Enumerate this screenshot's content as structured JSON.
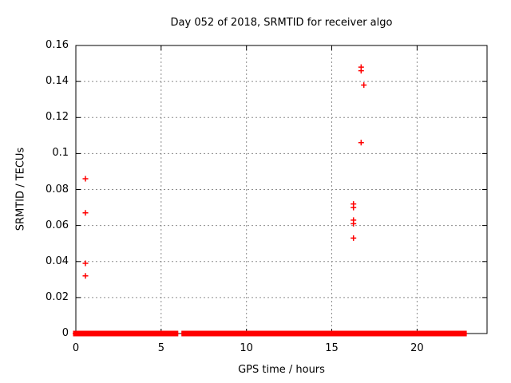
{
  "chart_data": {
    "type": "scatter",
    "title": "Day 052 of 2018, SRMTID for receiver algo",
    "xlabel": "GPS time / hours",
    "ylabel": "SRMTID / TECUs",
    "xlim": [
      0,
      24.1
    ],
    "ylim": [
      0,
      0.16
    ],
    "xticks": [
      0,
      5,
      10,
      15,
      20
    ],
    "xtick_labels": [
      "0",
      "5",
      "10",
      "15",
      "20"
    ],
    "yticks": [
      0,
      0.02,
      0.04,
      0.06,
      0.08,
      0.1,
      0.12,
      0.14,
      0.16
    ],
    "ytick_labels": [
      "0",
      "0.02",
      "0.04",
      "0.06",
      "0.08",
      "0.1",
      "0.12",
      "0.14",
      "0.16"
    ],
    "grid": true,
    "legend": "none",
    "marker": "plus",
    "colors": {
      "marker": "#ff0000",
      "grid": "#8c8c8c",
      "axis": "#000000",
      "text": "#000000",
      "background": "#ffffff"
    },
    "outlier_points": [
      [
        0.56,
        0.086
      ],
      [
        0.56,
        0.067
      ],
      [
        0.56,
        0.039
      ],
      [
        0.56,
        0.032
      ],
      [
        16.72,
        0.148
      ],
      [
        16.72,
        0.146
      ],
      [
        16.88,
        0.138
      ],
      [
        16.72,
        0.106
      ],
      [
        16.27,
        0.072
      ],
      [
        16.27,
        0.07
      ],
      [
        16.27,
        0.063
      ],
      [
        16.27,
        0.061
      ],
      [
        16.27,
        0.053
      ]
    ],
    "zero_band": {
      "y": 0,
      "segments": [
        [
          0.0,
          0.61
        ],
        [
          0.8,
          1.7
        ],
        [
          1.81,
          2.09
        ],
        [
          2.17,
          3.53
        ],
        [
          3.6,
          3.68
        ],
        [
          3.73,
          3.82
        ],
        [
          3.9,
          4.12
        ],
        [
          4.35,
          5.52
        ],
        [
          5.6,
          5.84
        ],
        [
          6.35,
          6.54
        ],
        [
          6.65,
          9.42
        ],
        [
          9.54,
          10.72
        ],
        [
          10.83,
          11.72
        ],
        [
          11.81,
          12.55
        ],
        [
          12.6,
          13.17
        ],
        [
          13.3,
          13.4
        ],
        [
          13.52,
          14.03
        ],
        [
          14.14,
          14.26
        ],
        [
          14.34,
          14.97
        ],
        [
          15.08,
          15.51
        ],
        [
          15.62,
          15.84
        ],
        [
          15.9,
          16.91
        ],
        [
          17.03,
          17.85
        ],
        [
          17.96,
          18.71
        ],
        [
          18.83,
          20.69
        ],
        [
          20.82,
          21.44
        ],
        [
          21.55,
          22.75
        ]
      ]
    }
  }
}
